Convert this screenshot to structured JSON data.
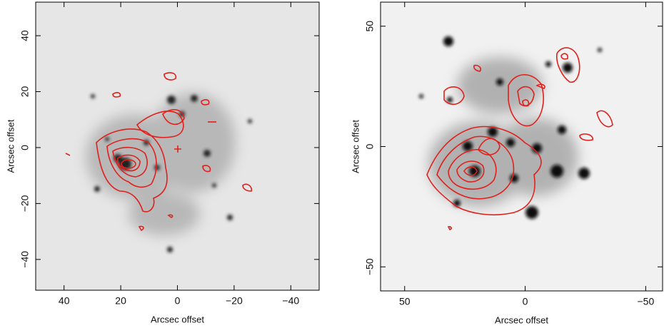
{
  "chart_data": [
    {
      "type": "image",
      "xlabel": "Arcsec offset",
      "ylabel": "Arcsec offset",
      "xlim": [
        50,
        -50
      ],
      "ylim": [
        -51,
        52
      ],
      "xticks": [
        40,
        20,
        0,
        {
          "value": -20,
          "label": "−20"
        },
        {
          "value": -40,
          "label": "−40"
        }
      ],
      "yticks": [
        {
          "value": -40,
          "label": "−40"
        },
        {
          "value": -20,
          "label": "−20"
        },
        0,
        20,
        40
      ]
    },
    {
      "type": "image",
      "xlabel": "Arcsec offset",
      "ylabel": "Arcsec offset",
      "xlim": [
        60,
        -57
      ],
      "ylim": [
        -60,
        60
      ],
      "xticks": [
        50,
        0,
        {
          "value": -50,
          "label": "−50"
        }
      ],
      "yticks": [
        {
          "value": -50,
          "label": "−50"
        },
        0,
        50
      ]
    }
  ]
}
